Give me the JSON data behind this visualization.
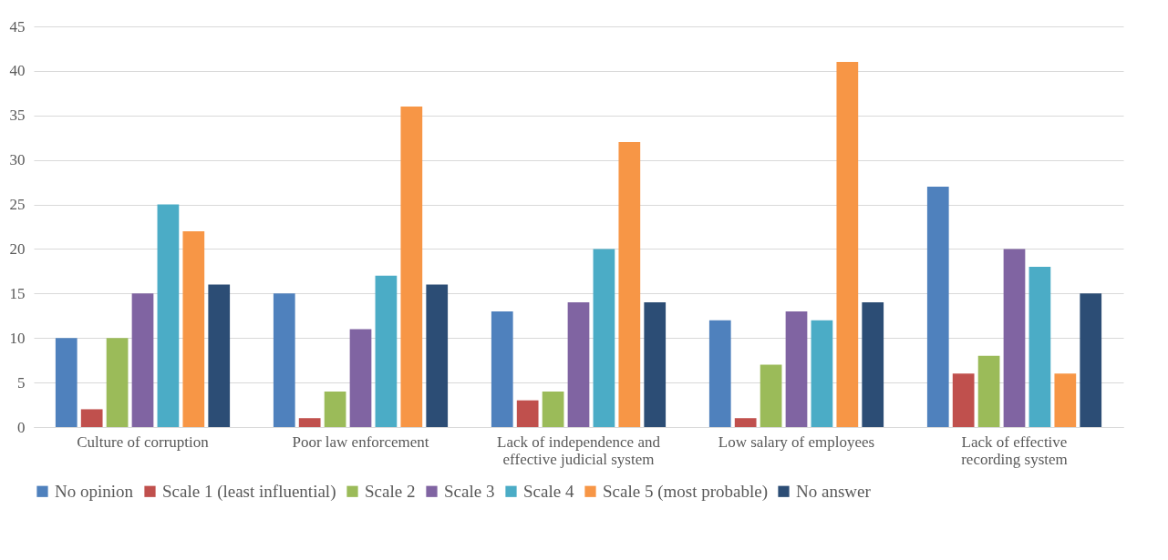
{
  "chart_data": {
    "type": "bar",
    "categories": [
      "Culture of corruption",
      "Poor law enforcement",
      "Lack of independence and effective judicial system",
      "Low salary of employees",
      "Lack of effective recording system"
    ],
    "series": [
      {
        "name": "No opinion",
        "color": "#4f81bd",
        "values": [
          10,
          15,
          13,
          12,
          27
        ]
      },
      {
        "name": "Scale 1 (least influential)",
        "color": "#c0504d",
        "values": [
          2,
          1,
          3,
          1,
          6
        ]
      },
      {
        "name": "Scale 2",
        "color": "#9bbb59",
        "values": [
          10,
          4,
          4,
          7,
          8
        ]
      },
      {
        "name": "Scale 3",
        "color": "#8064a2",
        "values": [
          15,
          11,
          14,
          13,
          20
        ]
      },
      {
        "name": "Scale 4",
        "color": "#4bacc6",
        "values": [
          25,
          17,
          20,
          12,
          18
        ]
      },
      {
        "name": "Scale 5 (most probable)",
        "color": "#f79646",
        "values": [
          22,
          36,
          32,
          41,
          6
        ]
      },
      {
        "name": "No answer",
        "color": "#2c4d75",
        "values": [
          16,
          16,
          14,
          14,
          15
        ]
      }
    ],
    "ylim": [
      0,
      45
    ],
    "yticks": [
      0,
      5,
      10,
      15,
      20,
      25,
      30,
      35,
      40,
      45
    ],
    "grid": "y",
    "legend": "bottom"
  }
}
